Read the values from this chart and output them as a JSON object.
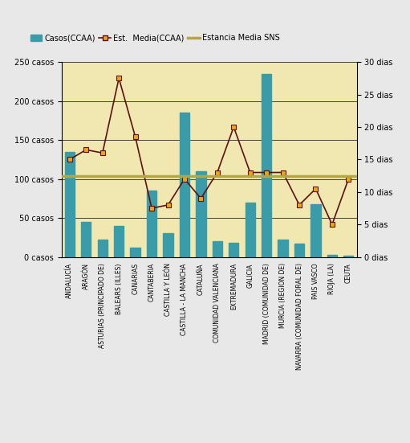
{
  "categories": [
    "ANDALUCÍA",
    "ARAGÓN",
    "ASTURIAS (PRINCIPADO DE)",
    "BALEARS (ILLES)",
    "CANARIAS",
    "CANTABERIA",
    "CASTILLA Y LEÓN",
    "CASTILLA - LA MANCHA",
    "CATALUÑA",
    "COMUNIDAD VALENCIANA",
    "EXTREMADURA",
    "GALICIA",
    "MADRID (COMUNIDAD DE)",
    "MURCIA (REGION DE)",
    "NAVARRA (COMUNIDAD FORAL DE)",
    "PAIS VASCO",
    "RIOJA (LA)",
    "CEUTA"
  ],
  "casos": [
    135,
    45,
    22,
    40,
    12,
    85,
    30,
    185,
    110,
    20,
    18,
    70,
    235,
    22,
    17,
    68,
    3,
    2
  ],
  "estancia_media": [
    15,
    16.5,
    16,
    27.5,
    18.5,
    7.5,
    8,
    12,
    9,
    13,
    20,
    13,
    13,
    13,
    8,
    10.5,
    5,
    12
  ],
  "sns_line": 12.5,
  "bar_color": "#3a9ca8",
  "line_color": "#5c1010",
  "marker_face_color": "#f0a800",
  "marker_edge_color": "#5c1010",
  "sns_color": "#b5a642",
  "background_color": "#f0e8b0",
  "fig_background": "#e8e8e8",
  "ylim_left": [
    0,
    250
  ],
  "ylim_right": [
    0,
    30
  ],
  "ylabel_left_ticks": [
    0,
    50,
    100,
    150,
    200,
    250
  ],
  "ylabel_right_ticks": [
    0,
    5,
    10,
    15,
    20,
    25,
    30
  ],
  "legend_labels": [
    "Casos(CCAA)",
    "Est.  Media(CCAA)",
    "Estancia Media SNS"
  ]
}
